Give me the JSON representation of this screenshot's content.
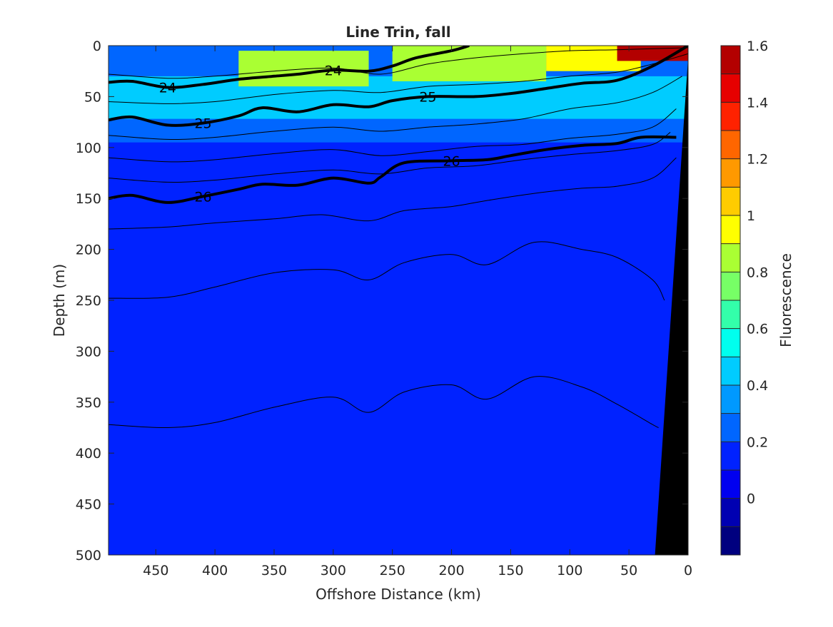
{
  "chart_data": {
    "type": "heatmap",
    "title": "Line Trin, fall",
    "xlabel": "Offshore Distance (km)",
    "ylabel": "Depth (m)",
    "xlim": [
      490,
      0
    ],
    "ylim": [
      500,
      0
    ],
    "x_reversed": true,
    "y_reversed": true,
    "xticks": [
      450,
      400,
      350,
      300,
      250,
      200,
      150,
      100,
      50,
      0
    ],
    "yticks": [
      0,
      50,
      100,
      150,
      200,
      250,
      300,
      350,
      400,
      450,
      500
    ],
    "colorbar": {
      "label": "Fluorescence",
      "range": [
        -0.2,
        1.6
      ],
      "ticks": [
        0,
        0.2,
        0.4,
        0.6,
        0.8,
        1,
        1.2,
        1.4,
        1.6
      ],
      "levels": [
        -0.2,
        -0.1,
        0,
        0.1,
        0.2,
        0.3,
        0.4,
        0.5,
        0.6,
        0.7,
        0.8,
        0.9,
        1.0,
        1.1,
        1.2,
        1.3,
        1.4,
        1.5,
        1.6
      ],
      "colors": [
        "#00007f",
        "#0000b2",
        "#0000f0",
        "#0022ff",
        "#0066ff",
        "#0099ff",
        "#00ccff",
        "#00ffee",
        "#33ffaa",
        "#77ff66",
        "#aaff33",
        "#ffff00",
        "#ffcc00",
        "#ff9900",
        "#ff6600",
        "#ff2200",
        "#e60000",
        "#b30000"
      ]
    },
    "background_color": "#0022ff",
    "bottom_color": "#000000",
    "fluorescence_patches": [
      {
        "x": [
          490,
          0
        ],
        "depth": [
          0,
          30
        ],
        "value": 0.25
      },
      {
        "x": [
          490,
          0
        ],
        "depth": [
          30,
          72
        ],
        "value": 0.45
      },
      {
        "x": [
          490,
          0
        ],
        "depth": [
          72,
          95
        ],
        "value": 0.25
      },
      {
        "x": [
          380,
          270
        ],
        "depth": [
          5,
          40
        ],
        "value": 0.8
      },
      {
        "x": [
          250,
          120
        ],
        "depth": [
          0,
          35
        ],
        "value": 0.85
      },
      {
        "x": [
          120,
          40
        ],
        "depth": [
          0,
          25
        ],
        "value": 0.95
      },
      {
        "x": [
          60,
          0
        ],
        "depth": [
          0,
          15
        ],
        "value": 1.5
      }
    ],
    "contours_bold": [
      {
        "label": "24",
        "x": [
          490,
          470,
          440,
          410,
          380,
          350,
          330,
          300,
          270,
          250,
          230,
          200,
          185
        ],
        "depth": [
          36,
          35,
          41,
          38,
          33,
          30,
          28,
          24,
          25,
          20,
          12,
          5,
          0
        ]
      },
      {
        "label": "25",
        "x": [
          490,
          470,
          440,
          410,
          380,
          360,
          330,
          300,
          270,
          250,
          220,
          180,
          150,
          120,
          90,
          60,
          30,
          0
        ],
        "depth": [
          73,
          70,
          78,
          76,
          69,
          61,
          65,
          58,
          60,
          54,
          50,
          50,
          47,
          42,
          37,
          34,
          20,
          0
        ]
      },
      {
        "label": "26",
        "x": [
          490,
          470,
          440,
          410,
          380,
          360,
          330,
          300,
          270,
          260,
          240,
          200,
          170,
          150,
          120,
          90,
          60,
          40,
          10
        ],
        "depth": [
          150,
          147,
          154,
          148,
          141,
          136,
          137,
          130,
          135,
          129,
          115,
          113,
          112,
          108,
          102,
          98,
          96,
          90,
          90
        ]
      }
    ],
    "contours_thin": [
      {
        "x": [
          490,
          440,
          400,
          350,
          310,
          270,
          240,
          200,
          170,
          130,
          90,
          60,
          30,
          10
        ],
        "depth": [
          180,
          178,
          174,
          170,
          166,
          172,
          162,
          158,
          152,
          145,
          140,
          138,
          130,
          110
        ]
      },
      {
        "x": [
          490,
          440,
          400,
          350,
          300,
          270,
          240,
          200,
          170,
          130,
          90,
          60,
          30,
          20
        ],
        "depth": [
          248,
          247,
          237,
          223,
          220,
          230,
          213,
          205,
          215,
          193,
          200,
          208,
          230,
          250
        ]
      },
      {
        "x": [
          490,
          440,
          400,
          350,
          300,
          270,
          240,
          200,
          170,
          130,
          90,
          60,
          30,
          25
        ],
        "depth": [
          372,
          375,
          370,
          355,
          345,
          360,
          340,
          333,
          347,
          325,
          335,
          352,
          372,
          375
        ]
      },
      {
        "x": [
          490,
          440,
          400,
          350,
          300,
          260,
          220,
          180,
          140,
          100,
          60,
          30,
          0
        ],
        "depth": [
          28,
          32,
          30,
          25,
          22,
          28,
          18,
          12,
          8,
          5,
          4,
          3,
          2
        ]
      },
      {
        "x": [
          490,
          440,
          400,
          350,
          300,
          260,
          220,
          180,
          140,
          100,
          60,
          30,
          0
        ],
        "depth": [
          55,
          57,
          55,
          48,
          44,
          46,
          40,
          38,
          35,
          30,
          26,
          18,
          8
        ]
      },
      {
        "x": [
          490,
          440,
          400,
          350,
          300,
          260,
          220,
          180,
          140,
          100,
          60,
          30,
          5
        ],
        "depth": [
          88,
          92,
          90,
          84,
          80,
          84,
          80,
          77,
          72,
          62,
          56,
          46,
          30
        ]
      },
      {
        "x": [
          490,
          440,
          400,
          350,
          300,
          260,
          220,
          180,
          140,
          100,
          60,
          30,
          10
        ],
        "depth": [
          110,
          114,
          112,
          106,
          102,
          108,
          104,
          99,
          97,
          91,
          87,
          80,
          62
        ]
      },
      {
        "x": [
          490,
          440,
          400,
          350,
          300,
          260,
          220,
          180,
          140,
          100,
          60,
          30,
          15
        ],
        "depth": [
          130,
          134,
          132,
          126,
          122,
          126,
          120,
          118,
          112,
          107,
          103,
          97,
          85
        ]
      }
    ],
    "bathymetry": {
      "x": [
        28,
        0,
        0,
        0,
        28
      ],
      "depth": [
        500,
        12,
        0,
        500,
        500
      ]
    }
  }
}
